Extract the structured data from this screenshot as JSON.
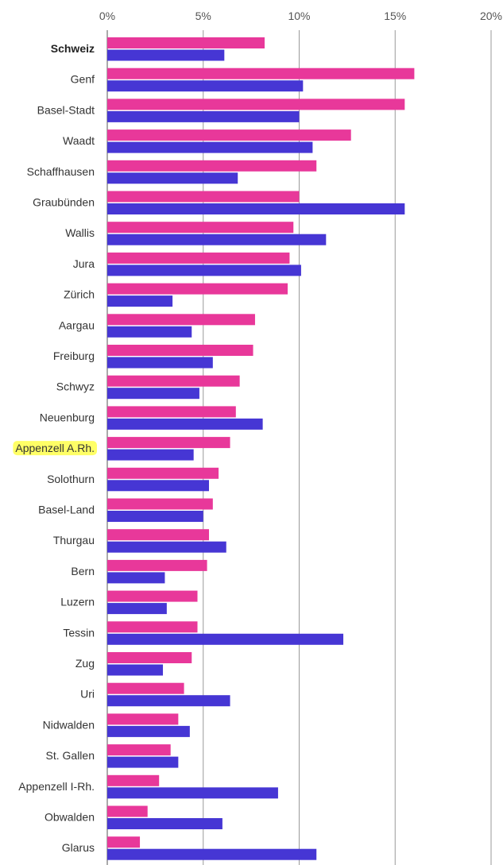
{
  "colors": {
    "series1": "#e8389a",
    "series2": "#4636d4",
    "highlight": "#ffff66"
  },
  "chart_data": {
    "type": "bar",
    "orientation": "horizontal",
    "title": "",
    "xlabel": "",
    "ylabel": "",
    "xlim": [
      0,
      20
    ],
    "x_ticks": [
      "0%",
      "5%",
      "10%",
      "15%",
      "20%"
    ],
    "grid": true,
    "categories": [
      "Schweiz",
      "Genf",
      "Basel-Stadt",
      "Waadt",
      "Schaffhausen",
      "Graubünden",
      "Wallis",
      "Jura",
      "Zürich",
      "Aargau",
      "Freiburg",
      "Schwyz",
      "Neuenburg",
      "Appenzell A.Rh.",
      "Solothurn",
      "Basel-Land",
      "Thurgau",
      "Bern",
      "Luzern",
      "Tessin",
      "Zug",
      "Uri",
      "Nidwalden",
      "St. Gallen",
      "Appenzell I-Rh.",
      "Obwalden",
      "Glarus"
    ],
    "bold_categories": [
      "Schweiz"
    ],
    "highlighted_categories": [
      "Appenzell A.Rh."
    ],
    "series": [
      {
        "values": [
          8.2,
          16.0,
          15.5,
          12.7,
          10.9,
          10.0,
          9.7,
          9.5,
          9.4,
          7.7,
          7.6,
          6.9,
          6.7,
          6.4,
          5.8,
          5.5,
          5.3,
          5.2,
          4.7,
          4.7,
          4.4,
          4.0,
          3.7,
          3.3,
          2.7,
          2.1,
          1.7
        ]
      },
      {
        "values": [
          6.1,
          10.2,
          10.0,
          10.7,
          6.8,
          15.5,
          11.4,
          10.1,
          3.4,
          4.4,
          5.5,
          4.8,
          8.1,
          4.5,
          5.3,
          5.0,
          6.2,
          3.0,
          3.1,
          12.3,
          2.9,
          6.4,
          4.3,
          3.7,
          8.9,
          6.0,
          10.9
        ]
      }
    ]
  }
}
